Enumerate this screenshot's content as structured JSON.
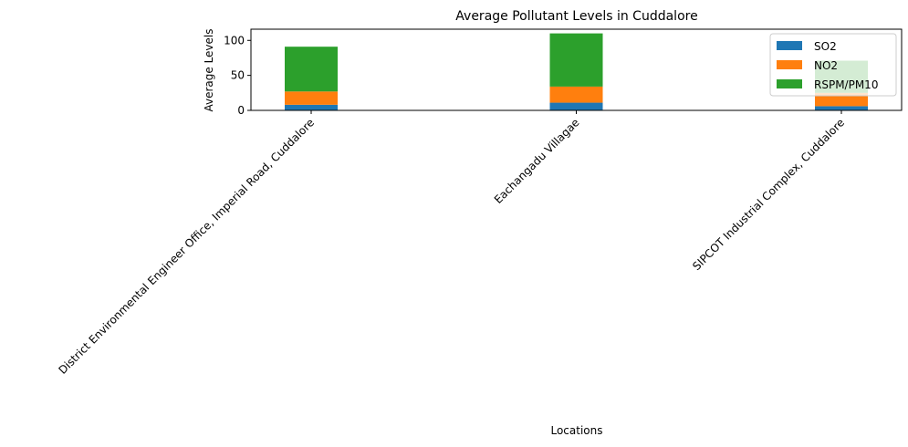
{
  "chart_data": {
    "type": "bar",
    "stacked": true,
    "title": "Average Pollutant Levels in Cuddalore",
    "xlabel": "Locations",
    "ylabel": "Average Levels",
    "categories": [
      "District Environmental Engineer Office, Imperial Road, Cuddalore",
      "Eachangadu Villagae",
      "SIPCOT Industrial Complex, Cuddalore"
    ],
    "series": [
      {
        "name": "SO2",
        "color": "#1f77b4",
        "values": [
          8,
          11,
          6
        ]
      },
      {
        "name": "NO2",
        "color": "#ff7f0e",
        "values": [
          19,
          23,
          19
        ]
      },
      {
        "name": "RSPM/PM10",
        "color": "#2ca02c",
        "values": [
          64,
          76,
          46
        ]
      }
    ],
    "ylim": [
      0,
      116
    ],
    "yticks": [
      0,
      50,
      100
    ],
    "grid": false,
    "legend_position": "top-right"
  }
}
